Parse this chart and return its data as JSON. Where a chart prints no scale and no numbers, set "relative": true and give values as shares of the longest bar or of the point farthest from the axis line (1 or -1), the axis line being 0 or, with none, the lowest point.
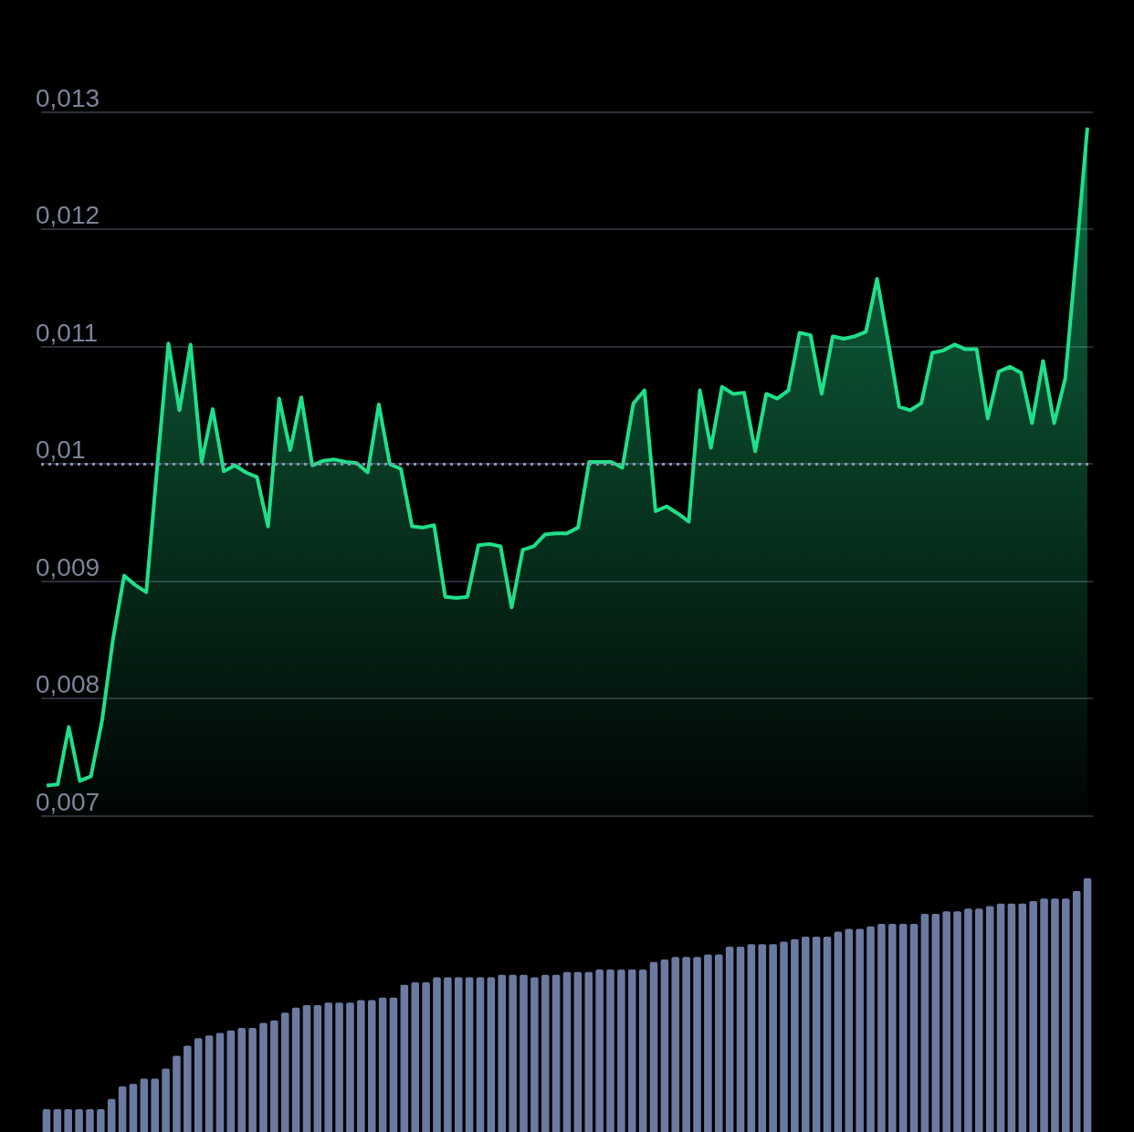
{
  "chart_data": [
    {
      "type": "area",
      "categories": [
        null,
        null,
        null,
        null,
        null,
        null,
        null,
        null,
        null,
        null,
        null,
        null,
        null,
        null,
        null,
        null,
        null,
        null,
        null,
        null,
        null,
        null,
        null,
        null,
        null,
        null,
        null,
        null,
        null,
        null,
        null,
        null,
        null,
        null,
        null,
        null,
        null,
        null,
        null,
        null,
        null,
        null,
        null,
        null,
        null,
        null,
        null,
        null,
        null,
        null,
        null,
        null,
        null,
        null,
        null,
        null,
        null,
        null,
        null,
        null,
        null,
        null,
        null,
        null,
        null,
        null,
        null,
        null,
        null,
        null,
        null,
        null,
        null,
        null,
        null,
        null,
        null,
        null,
        null,
        null,
        null,
        null,
        null,
        null,
        null,
        null,
        null,
        null,
        null,
        null,
        null,
        null,
        null,
        null,
        null
      ],
      "values": [
        0.00726,
        0.00727,
        0.00776,
        0.0073,
        0.00734,
        0.00781,
        0.00851,
        0.00905,
        0.00897,
        0.00891,
        0.00999,
        0.01103,
        0.01046,
        0.01102,
        0.01002,
        0.01047,
        0.00994,
        0.00999,
        0.00993,
        0.00989,
        0.00947,
        0.01056,
        0.01012,
        0.01057,
        0.00999,
        0.01003,
        0.01004,
        0.01002,
        0.01001,
        0.00993,
        0.01051,
        0.01,
        0.00996,
        0.00947,
        0.00946,
        0.00948,
        0.00887,
        0.00886,
        0.00887,
        0.00931,
        0.00932,
        0.0093,
        0.00878,
        0.00927,
        0.0093,
        0.0094,
        0.00941,
        0.00941,
        0.00946,
        0.01002,
        0.01002,
        0.01002,
        0.00997,
        0.01052,
        0.01063,
        0.0096,
        0.00964,
        0.00958,
        0.00951,
        0.01063,
        0.01014,
        0.01066,
        0.0106,
        0.01061,
        0.01011,
        0.0106,
        0.01056,
        0.01063,
        0.01112,
        0.0111,
        0.0106,
        0.01109,
        0.01107,
        0.01109,
        0.01113,
        0.01158,
        0.01105,
        0.01049,
        0.01046,
        0.01052,
        0.01095,
        0.01097,
        0.01102,
        0.01098,
        0.01098,
        0.01039,
        0.01079,
        0.01083,
        0.01078,
        0.01035,
        0.01088,
        0.01035,
        0.01073,
        0.01178,
        0.01287
      ],
      "color": "#1fe08a",
      "ylim": [
        0.007,
        0.013
      ],
      "yticks": [
        {
          "value": 0.007,
          "label": "0,007"
        },
        {
          "value": 0.008,
          "label": "0,008"
        },
        {
          "value": 0.009,
          "label": "0,009"
        },
        {
          "value": 0.01,
          "label": "0,01"
        },
        {
          "value": 0.011,
          "label": "0,011"
        },
        {
          "value": 0.012,
          "label": "0,012"
        },
        {
          "value": 0.013,
          "label": "0,013"
        }
      ],
      "grid": "y",
      "tick_labels": "y",
      "ref_lines": [
        {
          "axis": "y",
          "value": 0.01,
          "color": "#8a93ad",
          "line_style": "dotted"
        }
      ]
    },
    {
      "type": "bar",
      "relative": true,
      "tick_labels": false,
      "color": "#6b7aa1",
      "categories": [
        null,
        null,
        null,
        null,
        null,
        null,
        null,
        null,
        null,
        null,
        null,
        null,
        null,
        null,
        null,
        null,
        null,
        null,
        null,
        null,
        null,
        null,
        null,
        null,
        null,
        null,
        null,
        null,
        null,
        null,
        null,
        null,
        null,
        null,
        null,
        null,
        null,
        null,
        null,
        null,
        null,
        null,
        null,
        null,
        null,
        null,
        null,
        null,
        null,
        null,
        null,
        null,
        null,
        null,
        null,
        null,
        null,
        null,
        null,
        null,
        null,
        null,
        null,
        null,
        null,
        null,
        null,
        null,
        null,
        null,
        null,
        null,
        null,
        null,
        null,
        null,
        null,
        null,
        null,
        null,
        null,
        null,
        null,
        null,
        null,
        null,
        null,
        null,
        null,
        null,
        null,
        null,
        null,
        null,
        null,
        null,
        null
      ],
      "values": [
        0.09,
        0.09,
        0.09,
        0.09,
        0.09,
        0.09,
        0.13,
        0.18,
        0.19,
        0.21,
        0.21,
        0.25,
        0.3,
        0.34,
        0.37,
        0.38,
        0.39,
        0.4,
        0.41,
        0.41,
        0.43,
        0.44,
        0.47,
        0.49,
        0.5,
        0.5,
        0.51,
        0.51,
        0.51,
        0.52,
        0.52,
        0.53,
        0.53,
        0.58,
        0.59,
        0.59,
        0.61,
        0.61,
        0.61,
        0.61,
        0.61,
        0.61,
        0.62,
        0.62,
        0.62,
        0.61,
        0.62,
        0.62,
        0.63,
        0.63,
        0.63,
        0.64,
        0.64,
        0.64,
        0.64,
        0.64,
        0.67,
        0.68,
        0.69,
        0.69,
        0.69,
        0.7,
        0.7,
        0.73,
        0.73,
        0.74,
        0.74,
        0.74,
        0.75,
        0.76,
        0.77,
        0.77,
        0.77,
        0.79,
        0.8,
        0.8,
        0.81,
        0.82,
        0.82,
        0.82,
        0.82,
        0.86,
        0.86,
        0.87,
        0.87,
        0.88,
        0.88,
        0.89,
        0.9,
        0.9,
        0.9,
        0.91,
        0.92,
        0.92,
        0.92,
        0.95,
        1
      ]
    }
  ]
}
